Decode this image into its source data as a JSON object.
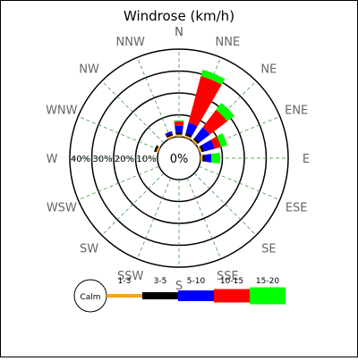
{
  "chart_data": {
    "type": "windrose",
    "title": "Windrose (km/h)",
    "directions": [
      "N",
      "NNE",
      "NE",
      "ENE",
      "E",
      "ESE",
      "SE",
      "SSE",
      "S",
      "SSW",
      "SW",
      "WSW",
      "W",
      "WNW",
      "NW",
      "NNW"
    ],
    "ring_labels": [
      "10%",
      "20%",
      "30%",
      "40%"
    ],
    "ring_max": 40,
    "calm_label": "Calm",
    "center_label": "0%",
    "bins": [
      {
        "name": "1-3",
        "color": "#f5a31a"
      },
      {
        "name": "3-5",
        "color": "#000000"
      },
      {
        "name": "5-10",
        "color": "#0000ff"
      },
      {
        "name": "10-15",
        "color": "#ff0000"
      },
      {
        "name": "15-20",
        "color": "#00ff00"
      }
    ],
    "series": [
      {
        "direction": "N",
        "values": [
          1,
          1,
          3,
          2,
          0.5
        ]
      },
      {
        "direction": "NNE",
        "values": [
          1,
          1,
          5,
          22,
          3
        ]
      },
      {
        "direction": "NE",
        "values": [
          1,
          1,
          6,
          10,
          4
        ]
      },
      {
        "direction": "ENE",
        "values": [
          1,
          1,
          5,
          3,
          3
        ]
      },
      {
        "direction": "E",
        "values": [
          1,
          1,
          3,
          0,
          4
        ]
      },
      {
        "direction": "ESE",
        "values": [
          0,
          0,
          0,
          0,
          0
        ]
      },
      {
        "direction": "SE",
        "values": [
          0,
          0,
          0,
          0,
          0
        ]
      },
      {
        "direction": "SSE",
        "values": [
          0,
          0,
          0,
          0,
          0
        ]
      },
      {
        "direction": "S",
        "values": [
          0,
          0,
          0,
          0,
          0
        ]
      },
      {
        "direction": "SSW",
        "values": [
          0,
          0,
          0,
          0,
          0
        ]
      },
      {
        "direction": "SW",
        "values": [
          0,
          0,
          0,
          0,
          0
        ]
      },
      {
        "direction": "WSW",
        "values": [
          0,
          0,
          0,
          0,
          0
        ]
      },
      {
        "direction": "W",
        "values": [
          0,
          0,
          0,
          0,
          0
        ]
      },
      {
        "direction": "WNW",
        "values": [
          1,
          1,
          0,
          0,
          0
        ]
      },
      {
        "direction": "NW",
        "values": [
          0,
          0,
          0,
          0,
          0
        ]
      },
      {
        "direction": "NNW",
        "values": [
          1,
          1,
          1,
          0,
          0
        ]
      }
    ]
  }
}
